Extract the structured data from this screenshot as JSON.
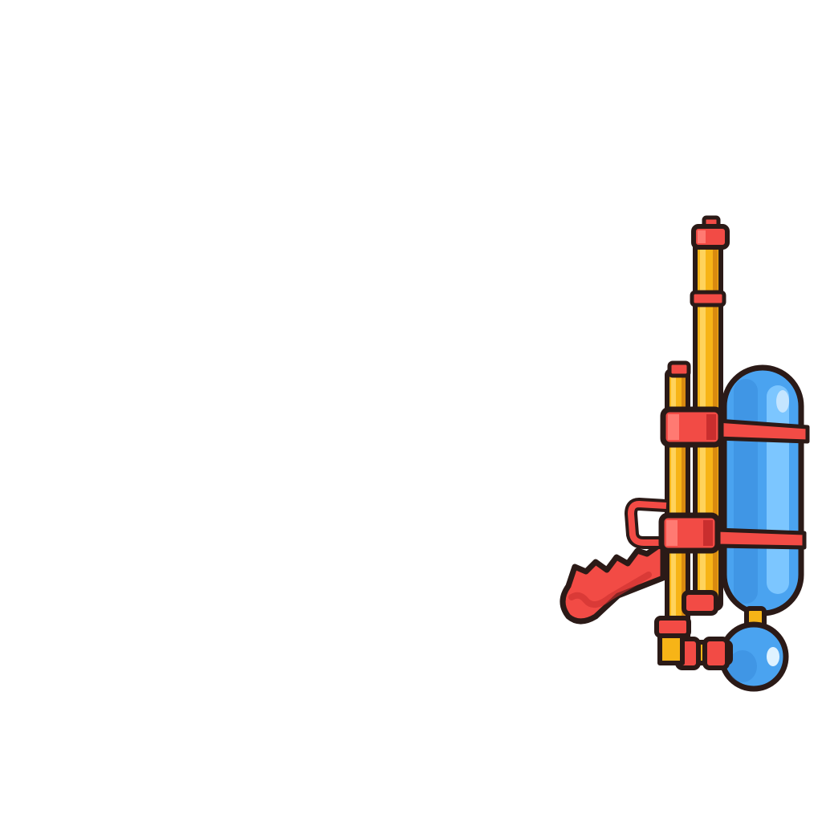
{
  "illustration": {
    "subject": "water-gun-icon",
    "colors": {
      "background": "#ffffff",
      "outline": "#2b1a17",
      "pipe_yellow": "#f7b417",
      "pipe_highlight": "#ffd35c",
      "pipe_shadow": "#d98a10",
      "red": "#f24b45",
      "red_light": "#ff7a72",
      "red_shadow": "#c92e2e",
      "tank_blue": "#4aa3f0",
      "tank_light": "#7cc6ff",
      "tank_shadow": "#2f7fd1"
    }
  }
}
